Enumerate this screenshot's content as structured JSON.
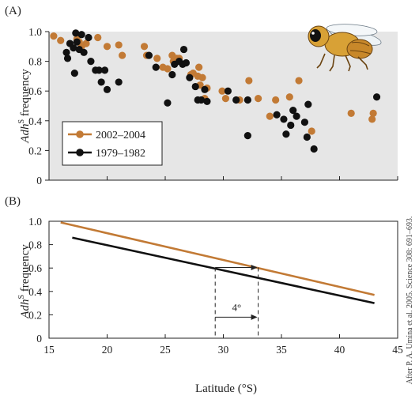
{
  "panels": {
    "a_label": "(A)",
    "b_label": "(B)"
  },
  "credit": "After P. A. Umina et al. 2005. Science 308: 691–693.",
  "annotation": "4°",
  "fly_icon": "fruit-fly-illustration",
  "colors": {
    "recent": "#c27a35",
    "old": "#111111",
    "panel_a_bg": "#e6e6e6"
  },
  "chart_data": [
    {
      "type": "scatter",
      "panel": "(A)",
      "ylabel_prefix": "Adh",
      "ylabel_sup": "S",
      "ylabel_suffix": " frequency",
      "xlim": [
        15,
        45
      ],
      "ylim": [
        0,
        1.0
      ],
      "yticks": [
        "0",
        "0.2",
        "0.4",
        "0.6",
        "0.8",
        "1.0"
      ],
      "legend_position": "lower-left",
      "series": [
        {
          "name": "2002–2004",
          "color": "#c27a35",
          "points": [
            [
              15.4,
              0.97
            ],
            [
              16.0,
              0.94
            ],
            [
              17.4,
              0.95
            ],
            [
              17.6,
              0.93
            ],
            [
              17.8,
              0.9
            ],
            [
              18.2,
              0.92
            ],
            [
              19.2,
              0.96
            ],
            [
              20.0,
              0.9
            ],
            [
              21.0,
              0.91
            ],
            [
              21.3,
              0.84
            ],
            [
              23.2,
              0.9
            ],
            [
              23.4,
              0.84
            ],
            [
              24.3,
              0.82
            ],
            [
              24.8,
              0.76
            ],
            [
              25.2,
              0.75
            ],
            [
              25.6,
              0.84
            ],
            [
              25.7,
              0.8
            ],
            [
              26.0,
              0.82
            ],
            [
              26.2,
              0.82
            ],
            [
              27.2,
              0.71
            ],
            [
              27.4,
              0.72
            ],
            [
              27.8,
              0.7
            ],
            [
              27.9,
              0.76
            ],
            [
              28.0,
              0.64
            ],
            [
              28.2,
              0.69
            ],
            [
              28.4,
              0.55
            ],
            [
              28.6,
              0.62
            ],
            [
              29.9,
              0.6
            ],
            [
              30.2,
              0.55
            ],
            [
              31.4,
              0.54
            ],
            [
              32.2,
              0.67
            ],
            [
              33.0,
              0.55
            ],
            [
              34.0,
              0.43
            ],
            [
              34.5,
              0.54
            ],
            [
              35.7,
              0.56
            ],
            [
              36.5,
              0.67
            ],
            [
              37.6,
              0.33
            ],
            [
              41.0,
              0.45
            ],
            [
              42.8,
              0.41
            ],
            [
              42.9,
              0.45
            ]
          ]
        },
        {
          "name": "1979–1982",
          "color": "#111111",
          "points": [
            [
              16.5,
              0.86
            ],
            [
              16.6,
              0.82
            ],
            [
              16.8,
              0.92
            ],
            [
              17.1,
              0.89
            ],
            [
              17.2,
              0.72
            ],
            [
              17.3,
              0.99
            ],
            [
              17.4,
              0.93
            ],
            [
              17.6,
              0.88
            ],
            [
              17.8,
              0.98
            ],
            [
              18.0,
              0.86
            ],
            [
              18.4,
              0.96
            ],
            [
              18.6,
              0.8
            ],
            [
              19.0,
              0.74
            ],
            [
              19.3,
              0.74
            ],
            [
              19.5,
              0.66
            ],
            [
              19.8,
              0.74
            ],
            [
              20.0,
              0.61
            ],
            [
              21.0,
              0.66
            ],
            [
              23.6,
              0.84
            ],
            [
              24.2,
              0.76
            ],
            [
              25.2,
              0.52
            ],
            [
              25.6,
              0.71
            ],
            [
              25.8,
              0.78
            ],
            [
              26.2,
              0.8
            ],
            [
              26.5,
              0.78
            ],
            [
              26.6,
              0.88
            ],
            [
              26.8,
              0.79
            ],
            [
              27.1,
              0.69
            ],
            [
              27.6,
              0.63
            ],
            [
              27.8,
              0.54
            ],
            [
              28.1,
              0.54
            ],
            [
              28.4,
              0.61
            ],
            [
              28.6,
              0.53
            ],
            [
              30.4,
              0.6
            ],
            [
              31.1,
              0.54
            ],
            [
              32.1,
              0.54
            ],
            [
              32.1,
              0.3
            ],
            [
              34.6,
              0.44
            ],
            [
              35.2,
              0.41
            ],
            [
              35.4,
              0.31
            ],
            [
              35.8,
              0.37
            ],
            [
              36.0,
              0.47
            ],
            [
              36.3,
              0.43
            ],
            [
              37.0,
              0.39
            ],
            [
              37.2,
              0.29
            ],
            [
              37.3,
              0.51
            ],
            [
              37.8,
              0.21
            ],
            [
              43.2,
              0.56
            ]
          ]
        }
      ]
    },
    {
      "type": "line",
      "panel": "(B)",
      "xlabel": "Latitude (°S)",
      "ylabel_prefix": "Adh",
      "ylabel_sup": "S",
      "ylabel_suffix": " frequency",
      "xlim": [
        15,
        45
      ],
      "ylim": [
        0,
        1.0
      ],
      "xticks": [
        "15",
        "20",
        "25",
        "30",
        "35",
        "40",
        "45"
      ],
      "yticks": [
        "0",
        "0.2",
        "0.4",
        "0.6",
        "0.8",
        "1.0"
      ],
      "series": [
        {
          "name": "2002–2004",
          "color": "#c27a35",
          "x": [
            16.0,
            43.0
          ],
          "y": [
            0.99,
            0.37
          ]
        },
        {
          "name": "1979–1982",
          "color": "#111111",
          "x": [
            17.0,
            43.0
          ],
          "y": [
            0.86,
            0.3
          ]
        }
      ],
      "shift_annotation": {
        "from_x": 29.3,
        "to_x": 33.0,
        "y_level": 0.605,
        "arrow_y": 0.18
      }
    }
  ]
}
